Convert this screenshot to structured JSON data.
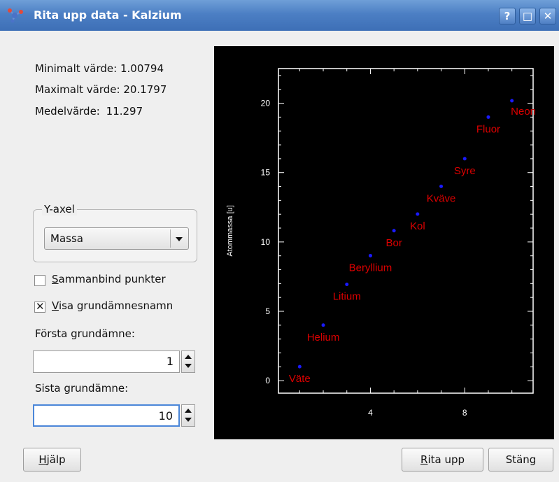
{
  "window": {
    "title": "Rita upp data - Kalzium",
    "buttons": {
      "help": "?",
      "maximize": "□",
      "close": "✕"
    }
  },
  "stats": {
    "min_label": "Minimalt värde:",
    "min_value": "1.00794",
    "max_label": "Maximalt värde:",
    "max_value": "20.1797",
    "mean_label": "Medelvärde:",
    "mean_value": "11.297"
  },
  "y_axis_group": {
    "title": "Y-axel",
    "selected": "Massa"
  },
  "checkboxes": {
    "connect_points": {
      "label_first": "S",
      "label_rest": "ammanbind punkter",
      "checked": false
    },
    "show_names": {
      "label_first": "V",
      "label_rest": "isa grundämnesnamn",
      "checked": true
    }
  },
  "first_element": {
    "label": "Första grundämne:",
    "value": "1"
  },
  "last_element": {
    "label": "Sista grundämne:",
    "value": "10"
  },
  "buttons": {
    "help": {
      "first": "H",
      "rest": "jälp"
    },
    "plot": {
      "first": "R",
      "rest": "ita upp"
    },
    "close": "Stäng"
  },
  "colors": {
    "point": "#1a1aff",
    "label": "#dd0000",
    "axis": "#ffffff",
    "title_bar": "#4c7fc4"
  },
  "chart_data": {
    "type": "scatter",
    "title": "",
    "xlabel": "",
    "ylabel": "Atommassa [u]",
    "xlim": [
      0.1,
      10.9
    ],
    "ylim": [
      -0.9,
      22.5
    ],
    "xticks": [
      4,
      8
    ],
    "yticks": [
      0,
      5,
      10,
      15,
      20
    ],
    "points": [
      {
        "x": 1,
        "y": 1.00794,
        "label": "Väte"
      },
      {
        "x": 2,
        "y": 4.0026,
        "label": "Helium"
      },
      {
        "x": 3,
        "y": 6.941,
        "label": "Litium"
      },
      {
        "x": 4,
        "y": 9.0122,
        "label": "Beryllium"
      },
      {
        "x": 5,
        "y": 10.811,
        "label": "Bor"
      },
      {
        "x": 6,
        "y": 12.0107,
        "label": "Kol"
      },
      {
        "x": 7,
        "y": 14.0067,
        "label": "Kväve"
      },
      {
        "x": 8,
        "y": 15.9994,
        "label": "Syre"
      },
      {
        "x": 9,
        "y": 18.9984,
        "label": "Fluor"
      },
      {
        "x": 10,
        "y": 20.1797,
        "label": "Neon"
      }
    ]
  }
}
